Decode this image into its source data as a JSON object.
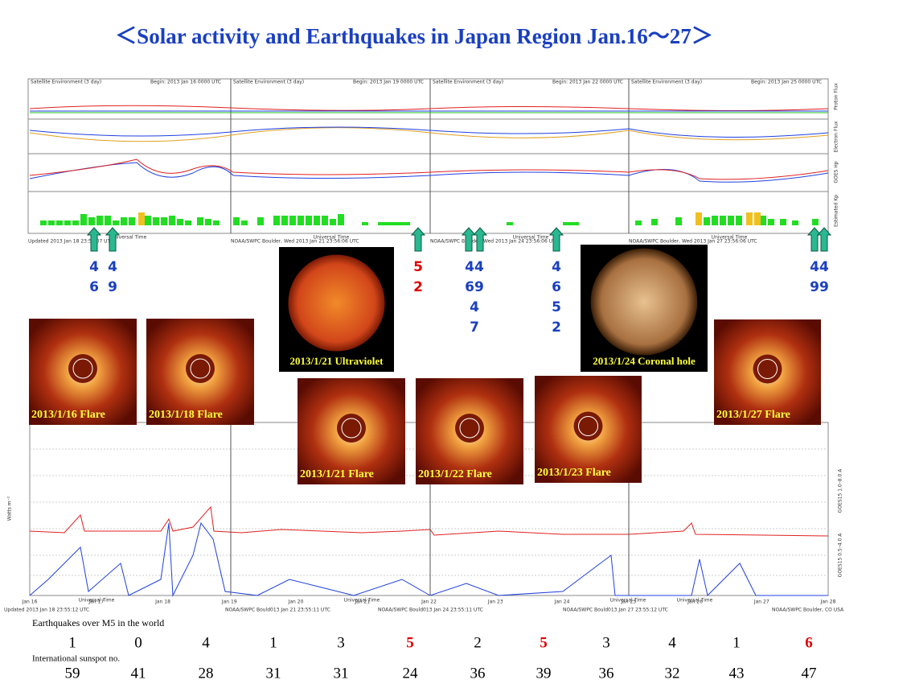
{
  "header": {
    "title": "＜Solar activity and Earthquakes  in Japan Region Jan.16～27＞"
  },
  "top_panel": {
    "headers": [
      "Satellite Environment (3 day)",
      "Satellite Environment (3 day)",
      "Satellite Environment (3 day)",
      "Satellite Environment (3 day)"
    ],
    "begins": [
      "Begin:  2013 Jan 16 0000 UTC",
      "Begin:  2013 Jan 19 0000 UTC",
      "Begin:  2013 Jan 22 0000 UTC",
      "Begin:  2013 Jan 25 0000 UTC"
    ],
    "row_labels": [
      "Proton Flux",
      "Electron Flux",
      "GOES Hp",
      "Estimated Kp"
    ],
    "x_label": "Universal Time",
    "footers": [
      "Updated 2013 Jan 18 23:56:07 UTC",
      "NOAA/SWPC Boulder, Wed 2013 Jan 21 23:56:06 UTC",
      "NOAA/SWPC Boulder, Wed 2013 Jan 24 23:56:06 UTC",
      "NOAA/SWPC Boulder, Wed 2013 Jan 27 23:56:06 UTC"
    ]
  },
  "quake_markers": [
    {
      "lines": [
        "4",
        "6"
      ],
      "color": "#1a3fc0"
    },
    {
      "lines": [
        "4",
        "9"
      ],
      "color": "#1a3fc0"
    },
    {
      "lines": [
        "5",
        "2"
      ],
      "color": "#e00000"
    },
    {
      "lines": [
        "44",
        "69",
        "4",
        "7"
      ],
      "color": "#1a3fc0"
    },
    {
      "lines": [
        "4",
        "6",
        "5",
        "2"
      ],
      "color": "#1a3fc0"
    },
    {
      "lines": [
        "44",
        "99"
      ],
      "color": "#1a3fc0"
    }
  ],
  "images": [
    {
      "caption": "2013/1/21 Ultraviolet"
    },
    {
      "caption": "2013/1/24 Coronal hole"
    },
    {
      "caption": "2013/1/16 Flare"
    },
    {
      "caption": "2013/1/18 Flare"
    },
    {
      "caption": "2013/1/21 Flare"
    },
    {
      "caption": "2013/1/22 Flare"
    },
    {
      "caption": "2013/1/23 Flare"
    },
    {
      "caption": "2013/1/27 Flare"
    }
  ],
  "xray_panel": {
    "y_label": "Watts m⁻²",
    "right_labels": [
      "GOES15 1.0–8.0 A",
      "GOES15 0.5–4.0 A"
    ],
    "days": [
      "Jan 16",
      "Jan 17",
      "Jan 18",
      "Jan 19",
      "Jan 20",
      "Jan 21",
      "Jan 22",
      "Jan 23",
      "Jan 24",
      "Jan 25",
      "Jan 26",
      "Jan 27",
      "Jan 28"
    ],
    "x_label": "Universal Time",
    "footers": [
      "Updated 2013 Jan 18 23:55:12 UTC",
      "NOAA/SWPC Bould013 Jan 21 23:55:11 UTC",
      "NOAA/SWPC Bould013 Jan 24 23:55:11 UTC",
      "NOAA/SWPC Bould013 Jan 27 23:55:12 UTC",
      "NOAA/SWPC Boulder, CO USA"
    ]
  },
  "earthquakes": {
    "label": "Earthquakes over M5 in the world",
    "values": [
      1,
      0,
      4,
      1,
      3,
      5,
      2,
      5,
      3,
      4,
      1,
      6
    ],
    "colors": [
      "#000",
      "#000",
      "#000",
      "#000",
      "#000",
      "#e00000",
      "#000",
      "#e00000",
      "#000",
      "#000",
      "#000",
      "#e00000"
    ]
  },
  "sunspots": {
    "label": "International sunspot no.",
    "values": [
      59,
      41,
      28,
      31,
      31,
      24,
      36,
      39,
      36,
      32,
      43,
      47
    ]
  }
}
